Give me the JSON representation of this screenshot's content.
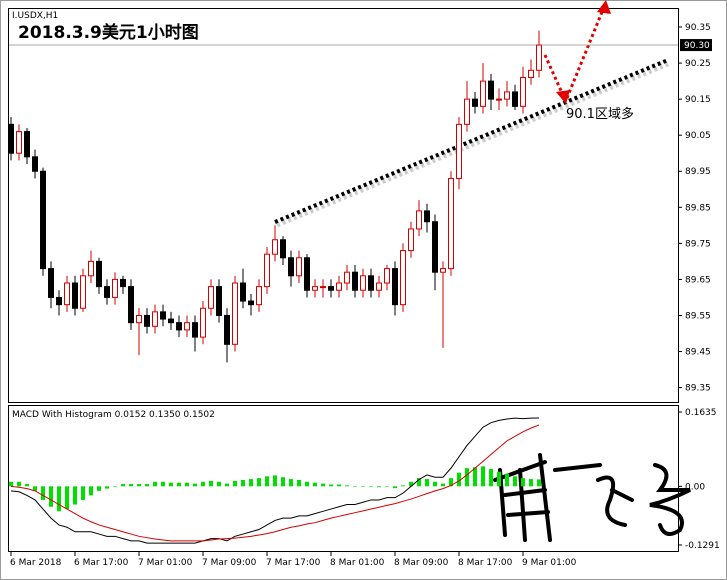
{
  "chart_data": {
    "type": "candlestick",
    "symbol": "I.USDX,H1",
    "title": "2018.3.9美元1小时图",
    "annotation": "90.1区域多",
    "ylim": [
      89.31,
      90.4
    ],
    "yticks": [
      90.35,
      90.25,
      90.15,
      {
        "value": 90.05,
        "label": "90.05"
      },
      89.95,
      89.85,
      89.75,
      89.65,
      89.55,
      89.45,
      89.35
    ],
    "last_price": {
      "value": 90.3,
      "label": "90.30"
    },
    "time_labels": [
      "6 Mar 2018",
      "6 Mar 17:00",
      "7 Mar 01:00",
      "7 Mar 09:00",
      "7 Mar 17:00",
      "8 Mar 01:00",
      "8 Mar 09:00",
      "8 Mar 17:00",
      "9 Mar 01:00"
    ],
    "up_color": "#d40000",
    "down_color": "#000000",
    "open": [
      90.08,
      90.0,
      90.06,
      89.99,
      89.95,
      89.68,
      89.6,
      89.58,
      89.64,
      89.57,
      89.66,
      89.7,
      89.63,
      89.6,
      89.65,
      89.63,
      89.53,
      89.55,
      89.52,
      89.56,
      89.54,
      89.53,
      89.51,
      89.53,
      89.49,
      89.57,
      89.63,
      89.55,
      89.47,
      89.64,
      89.59,
      89.58,
      89.63,
      89.72,
      89.76,
      89.71,
      89.66,
      89.71,
      89.62,
      89.63,
      89.63,
      89.62,
      89.64,
      89.67,
      89.62,
      89.66,
      89.62,
      89.64,
      89.68,
      89.58,
      89.73,
      89.79,
      89.84,
      89.81,
      89.67,
      89.68,
      89.93,
      90.08,
      90.15,
      90.13,
      90.2,
      90.15,
      90.15,
      90.17,
      90.13,
      90.21,
      90.23
    ],
    "high": [
      90.1,
      90.08,
      90.07,
      90.01,
      89.96,
      89.7,
      89.62,
      89.66,
      89.66,
      89.68,
      89.73,
      89.71,
      89.65,
      89.67,
      89.66,
      89.65,
      89.57,
      89.57,
      89.58,
      89.58,
      89.56,
      89.55,
      89.55,
      89.55,
      89.59,
      89.65,
      89.65,
      89.57,
      89.66,
      89.68,
      89.61,
      89.65,
      89.74,
      89.8,
      89.77,
      89.73,
      89.73,
      89.72,
      89.65,
      89.65,
      89.65,
      89.66,
      89.69,
      89.69,
      89.68,
      89.68,
      89.66,
      89.69,
      89.7,
      89.75,
      89.81,
      89.87,
      89.86,
      89.83,
      89.7,
      89.95,
      90.1,
      90.2,
      90.17,
      90.25,
      90.22,
      90.18,
      90.2,
      90.19,
      90.24,
      90.26,
      90.34
    ],
    "low": [
      89.98,
      89.98,
      89.97,
      89.93,
      89.66,
      89.57,
      89.55,
      89.56,
      89.55,
      89.56,
      89.64,
      89.61,
      89.58,
      89.58,
      89.61,
      89.51,
      89.44,
      89.5,
      89.5,
      89.52,
      89.51,
      89.49,
      89.49,
      89.45,
      89.47,
      89.55,
      89.53,
      89.42,
      89.45,
      89.57,
      89.55,
      89.56,
      89.61,
      89.7,
      89.69,
      89.63,
      89.64,
      89.6,
      89.6,
      89.6,
      89.6,
      89.6,
      89.62,
      89.6,
      89.6,
      89.6,
      89.6,
      89.62,
      89.55,
      89.56,
      89.71,
      89.77,
      89.78,
      89.62,
      89.46,
      89.66,
      89.9,
      90.06,
      90.11,
      90.11,
      90.12,
      90.12,
      90.13,
      90.12,
      90.11,
      90.19,
      90.21
    ],
    "close": [
      90.0,
      90.06,
      89.99,
      89.95,
      89.68,
      89.6,
      89.58,
      89.64,
      89.57,
      89.66,
      89.7,
      89.63,
      89.6,
      89.65,
      89.63,
      89.53,
      89.55,
      89.52,
      89.56,
      89.54,
      89.53,
      89.51,
      89.53,
      89.49,
      89.57,
      89.63,
      89.55,
      89.47,
      89.64,
      89.59,
      89.58,
      89.63,
      89.72,
      89.76,
      89.71,
      89.66,
      89.71,
      89.62,
      89.63,
      89.63,
      89.62,
      89.64,
      89.67,
      89.62,
      89.66,
      89.62,
      89.64,
      89.68,
      89.58,
      89.73,
      89.79,
      89.84,
      89.81,
      89.67,
      89.68,
      89.93,
      90.08,
      90.15,
      90.13,
      90.2,
      90.15,
      90.15,
      90.17,
      90.13,
      90.21,
      90.23,
      90.3
    ],
    "macd": {
      "label": "MACD With Histogram 0.0152 0.1350 0.1502",
      "ylim": [
        -0.1291,
        0.1635
      ],
      "yticks": [
        0.1635,
        {
          "value": 0,
          "label": "0.00"
        },
        -0.1291
      ],
      "series": [
        {
          "type": "bar",
          "color": "#00e000",
          "values": [
            0.01,
            0.01,
            0.005,
            -0.01,
            -0.03,
            -0.045,
            -0.055,
            -0.05,
            -0.04,
            -0.03,
            -0.02,
            -0.01,
            -0.005,
            0.0,
            0.005,
            0.005,
            0.005,
            0.005,
            0.01,
            0.01,
            0.008,
            0.008,
            0.008,
            0.006,
            0.01,
            0.012,
            0.01,
            0.006,
            0.012,
            0.014,
            0.016,
            0.018,
            0.022,
            0.024,
            0.02,
            0.016,
            0.014,
            0.01,
            0.008,
            0.006,
            0.004,
            0.004,
            0.002,
            0.0,
            0.0,
            0.0,
            -0.002,
            0.0,
            -0.004,
            0.002,
            0.01,
            0.018,
            0.016,
            0.01,
            0.006,
            0.018,
            0.03,
            0.04,
            0.042,
            0.044,
            0.038,
            0.032,
            0.028,
            0.022,
            0.018,
            0.016,
            0.0152
          ]
        },
        {
          "type": "line",
          "color": "#000000",
          "values": [
            -0.01,
            -0.012,
            -0.02,
            -0.03,
            -0.05,
            -0.07,
            -0.085,
            -0.09,
            -0.1,
            -0.1,
            -0.1,
            -0.105,
            -0.11,
            -0.11,
            -0.115,
            -0.12,
            -0.12,
            -0.125,
            -0.125,
            -0.125,
            -0.125,
            -0.125,
            -0.125,
            -0.125,
            -0.12,
            -0.115,
            -0.115,
            -0.12,
            -0.11,
            -0.105,
            -0.1,
            -0.095,
            -0.085,
            -0.075,
            -0.07,
            -0.07,
            -0.065,
            -0.065,
            -0.06,
            -0.055,
            -0.05,
            -0.045,
            -0.04,
            -0.04,
            -0.035,
            -0.03,
            -0.03,
            -0.025,
            -0.025,
            -0.015,
            0.0,
            0.015,
            0.025,
            0.02,
            0.02,
            0.04,
            0.065,
            0.09,
            0.11,
            0.13,
            0.14,
            0.145,
            0.148,
            0.15,
            0.149,
            0.15,
            0.1502
          ]
        },
        {
          "type": "line",
          "color": "#d40000",
          "values": [
            0.0,
            -0.002,
            -0.005,
            -0.01,
            -0.02,
            -0.03,
            -0.04,
            -0.05,
            -0.06,
            -0.07,
            -0.078,
            -0.085,
            -0.09,
            -0.095,
            -0.1,
            -0.105,
            -0.11,
            -0.113,
            -0.116,
            -0.118,
            -0.12,
            -0.12,
            -0.12,
            -0.12,
            -0.12,
            -0.118,
            -0.116,
            -0.115,
            -0.114,
            -0.112,
            -0.11,
            -0.107,
            -0.104,
            -0.1,
            -0.095,
            -0.09,
            -0.087,
            -0.083,
            -0.08,
            -0.075,
            -0.07,
            -0.066,
            -0.062,
            -0.058,
            -0.054,
            -0.05,
            -0.046,
            -0.042,
            -0.038,
            -0.033,
            -0.028,
            -0.022,
            -0.016,
            -0.01,
            -0.005,
            0.002,
            0.012,
            0.025,
            0.04,
            0.055,
            0.07,
            0.085,
            0.1,
            0.11,
            0.12,
            0.128,
            0.135
          ]
        }
      ]
    }
  }
}
